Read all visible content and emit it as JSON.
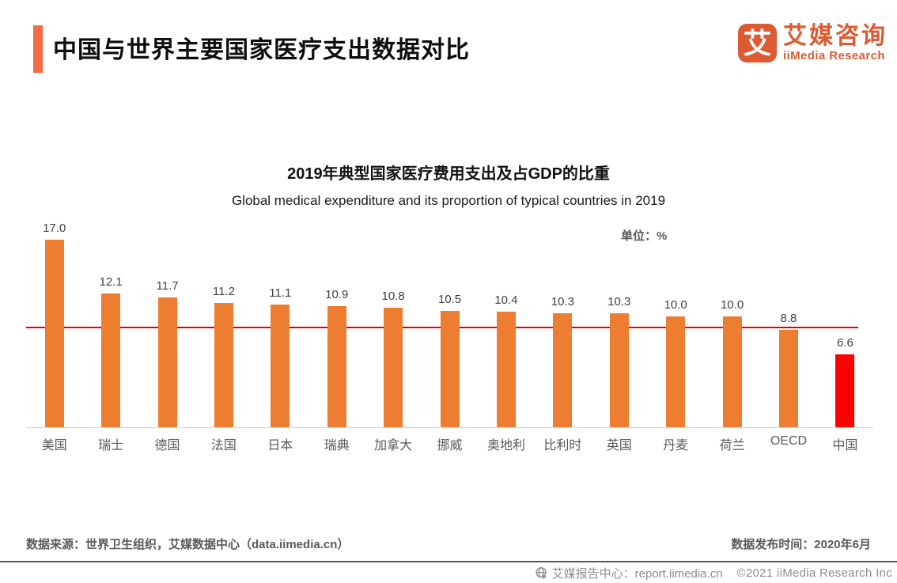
{
  "header": {
    "title": "中国与世界主要国家医疗支出数据对比",
    "logo": {
      "glyph": "艾",
      "brand_cn": "艾媒咨询",
      "brand_en": "iiMedia Research",
      "brand_color": "#DD5B33"
    }
  },
  "chart": {
    "unit_label": "单位：%"
  },
  "chart_data": {
    "type": "bar",
    "title": "2019年典型国家医疗费用支出及占GDP的比重",
    "subtitle": "Global medical expenditure and its proportion of typical countries in 2019",
    "unit": "%",
    "categories": [
      "美国",
      "瑞士",
      "德国",
      "法国",
      "日本",
      "瑞典",
      "加拿大",
      "挪威",
      "奥地利",
      "比利时",
      "英国",
      "丹麦",
      "荷兰",
      "OECD",
      "中国"
    ],
    "values": [
      17.0,
      12.1,
      11.7,
      11.2,
      11.1,
      10.9,
      10.8,
      10.5,
      10.4,
      10.3,
      10.3,
      10.0,
      10.0,
      8.8,
      6.6
    ],
    "value_labels": true,
    "bar_color": "#ED7D31",
    "highlight_category": "中国",
    "highlight_color": "#FE0000",
    "reference_line": {
      "value": 8.9,
      "color": "#E60000"
    },
    "ylim": [
      0,
      18
    ],
    "grid": false,
    "legend": "none"
  },
  "footer": {
    "source": "数据来源：世界卫生组织，艾媒数据中心（data.iimedia.cn）",
    "publish": "数据发布时间：2020年6月"
  },
  "bottombar": {
    "report_text": "艾媒报告中心：report.iimedia.cn",
    "copyright": "©2021  iiMedia Research  Inc"
  }
}
